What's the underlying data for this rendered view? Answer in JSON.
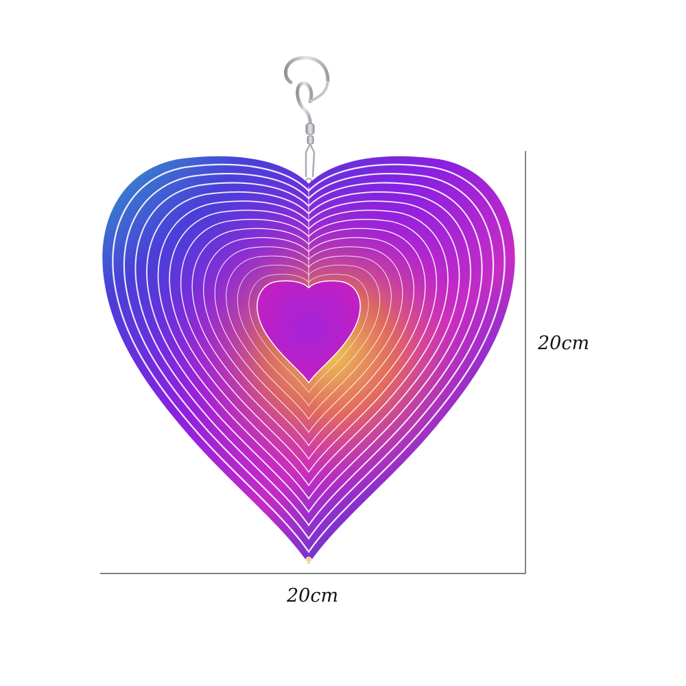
{
  "dimensions": {
    "height_label": "20cm",
    "width_label": "20cm"
  },
  "colors": {
    "background": "#ffffff",
    "dimension_line": "#333333",
    "groove": "#ffffff",
    "metal_rainbow": [
      "#3a8fd0",
      "#4b3bd6",
      "#8a1fe0",
      "#d02cc0",
      "#e87a3a",
      "#e8c83a"
    ],
    "hook_silver": "#b9bcc2"
  },
  "icons": {
    "hook": "hook-icon",
    "swivel": "swivel-icon",
    "spinner": "heart-spinner-icon"
  }
}
